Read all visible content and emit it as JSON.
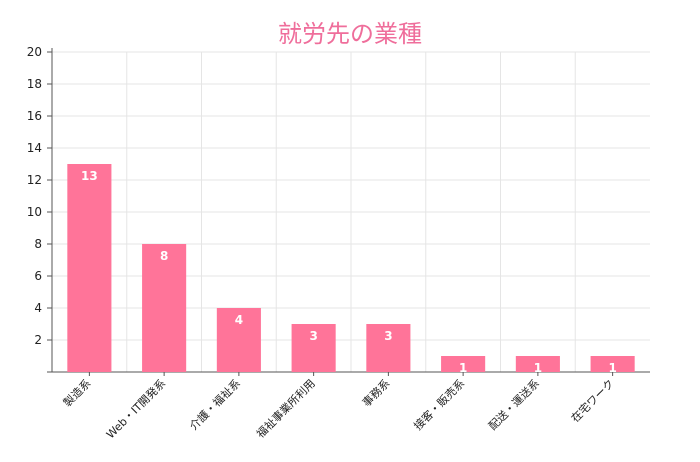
{
  "chart_data": {
    "type": "bar",
    "title": "就労先の業種",
    "categories": [
      "製造系",
      "Web・IT開発系",
      "介護・福祉系",
      "福祉事業所利用",
      "事務系",
      "接客・販売系",
      "配送・運送系",
      "在宅ワーク"
    ],
    "values": [
      13,
      8,
      4,
      3,
      3,
      1,
      1,
      1
    ],
    "ylim": [
      0,
      20
    ],
    "yticks": [
      2,
      4,
      6,
      8,
      10,
      12,
      14,
      16,
      18,
      20
    ],
    "grid": true,
    "legend": "none",
    "colors": {
      "bar": "#ff7499",
      "title": "#ef6e9b",
      "grid": "#e5e5e5",
      "axis": "#555555"
    }
  }
}
